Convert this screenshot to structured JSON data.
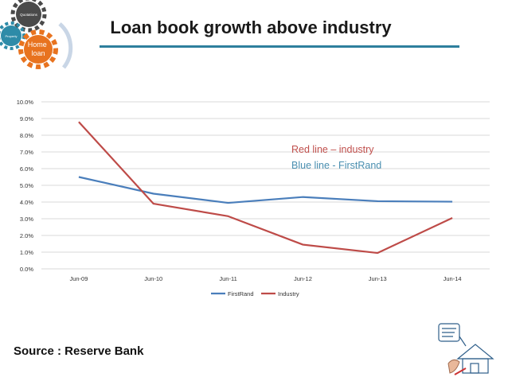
{
  "slide": {
    "title": "Loan book growth above industry",
    "source": "Source : Reserve Bank",
    "accent_color": "#2e7f9d"
  },
  "gears": [
    {
      "label": "Quotations",
      "color": "#4a4a4a"
    },
    {
      "label": "Property",
      "color": "#2e8ba8"
    },
    {
      "label": "Home\nloan",
      "color": "#e8731f"
    }
  ],
  "chart_data": {
    "type": "line",
    "categories": [
      "Jun-09",
      "Jun-10",
      "Jun-11",
      "Jun-12",
      "Jun-13",
      "Jun-14"
    ],
    "series": [
      {
        "name": "FirstRand",
        "color": "#4a7ebb",
        "values": [
          5.5,
          4.5,
          3.95,
          4.3,
          4.05,
          4.02
        ]
      },
      {
        "name": "Industry",
        "color": "#be4b48",
        "values": [
          8.8,
          3.9,
          3.15,
          1.45,
          0.95,
          3.05
        ]
      }
    ],
    "yticks": [
      "0.0%",
      "1.0%",
      "2.0%",
      "3.0%",
      "4.0%",
      "5.0%",
      "6.0%",
      "7.0%",
      "8.0%",
      "9.0%",
      "10.0%"
    ],
    "ylim": [
      0,
      10
    ],
    "grid": true,
    "legend_position": "bottom",
    "annotations": [
      {
        "text": "Red line – industry",
        "color": "#c0504d"
      },
      {
        "text": "Blue line - FirstRand",
        "color": "#4a8fb0"
      }
    ]
  }
}
